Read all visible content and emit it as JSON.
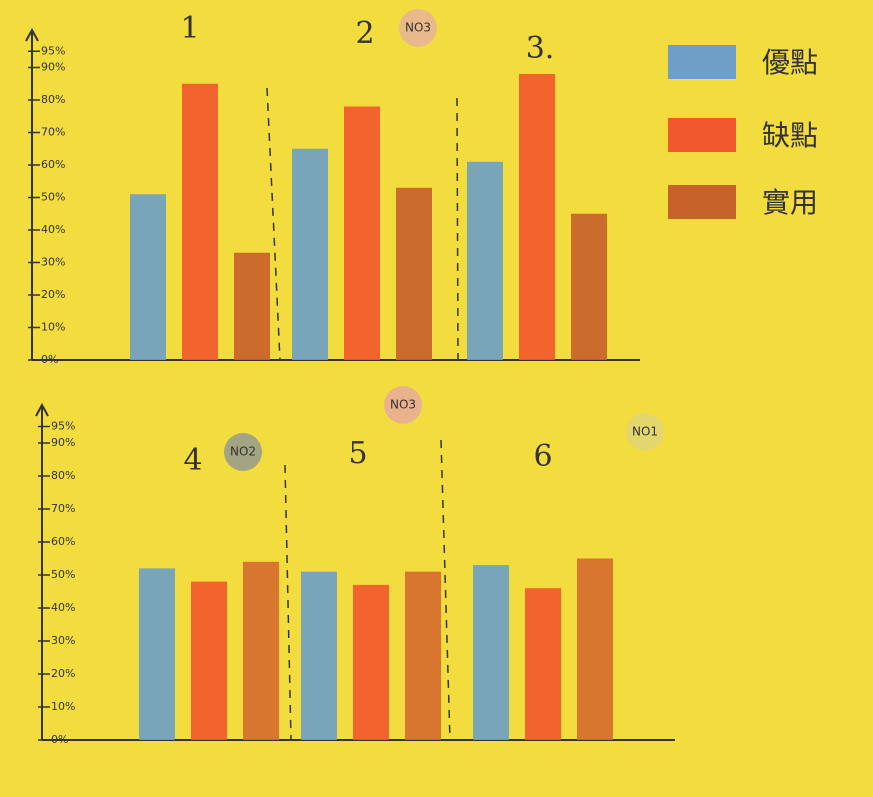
{
  "chart_data": [
    {
      "type": "bar",
      "categories": [
        "1",
        "2",
        "3."
      ],
      "category_colors": [
        "#3fae4a",
        "#6b5a2a",
        "#e0561f"
      ],
      "annotations": [
        "NO3"
      ],
      "series": [
        {
          "name": "優點",
          "color": "#6f9fc4",
          "values": [
            51,
            65,
            61
          ]
        },
        {
          "name": "缺點",
          "color": "#f2582d",
          "values": [
            85,
            78,
            88
          ]
        },
        {
          "name": "實用",
          "color": "#c8622b",
          "values": [
            33,
            53,
            45
          ]
        }
      ],
      "ylim": [
        0,
        100
      ],
      "yticks": [
        {
          "value": 0,
          "label": "0%"
        },
        {
          "value": 10,
          "label": "10%"
        },
        {
          "value": 20,
          "label": "20%"
        },
        {
          "value": 30,
          "label": "30%"
        },
        {
          "value": 40,
          "label": "40%"
        },
        {
          "value": 50,
          "label": "50%"
        },
        {
          "value": 60,
          "label": "60%"
        },
        {
          "value": 70,
          "label": "70%"
        },
        {
          "value": 80,
          "label": "80%"
        },
        {
          "value": 90,
          "label": "90%"
        },
        {
          "value": 95,
          "label": "95%"
        }
      ],
      "grid": false
    },
    {
      "type": "bar",
      "categories": [
        "4",
        "5",
        "6"
      ],
      "category_colors": [
        "#3fae4a",
        "#6b6a3a",
        "#e0561f"
      ],
      "annotations": [
        "NO3",
        "NO2",
        "NO1"
      ],
      "series": [
        {
          "color": "#6f9fc4",
          "values": [
            52,
            51,
            53
          ]
        },
        {
          "color": "#f2582d",
          "values": [
            48,
            47,
            46
          ]
        },
        {
          "color": "#d66b2e",
          "values": [
            54,
            51,
            55
          ]
        }
      ],
      "ylim": [
        0,
        100
      ],
      "yticks": [
        {
          "value": 0,
          "label": "0%"
        },
        {
          "value": 10,
          "label": "10%"
        },
        {
          "value": 20,
          "label": "20%"
        },
        {
          "value": 30,
          "label": "30%"
        },
        {
          "value": 40,
          "label": "40%"
        },
        {
          "value": 50,
          "label": "50%"
        },
        {
          "value": 60,
          "label": "60%"
        },
        {
          "value": 70,
          "label": "70%"
        },
        {
          "value": 80,
          "label": "80%"
        },
        {
          "value": 90,
          "label": "90%"
        },
        {
          "value": 95,
          "label": "95%"
        }
      ],
      "grid": false
    }
  ]
}
